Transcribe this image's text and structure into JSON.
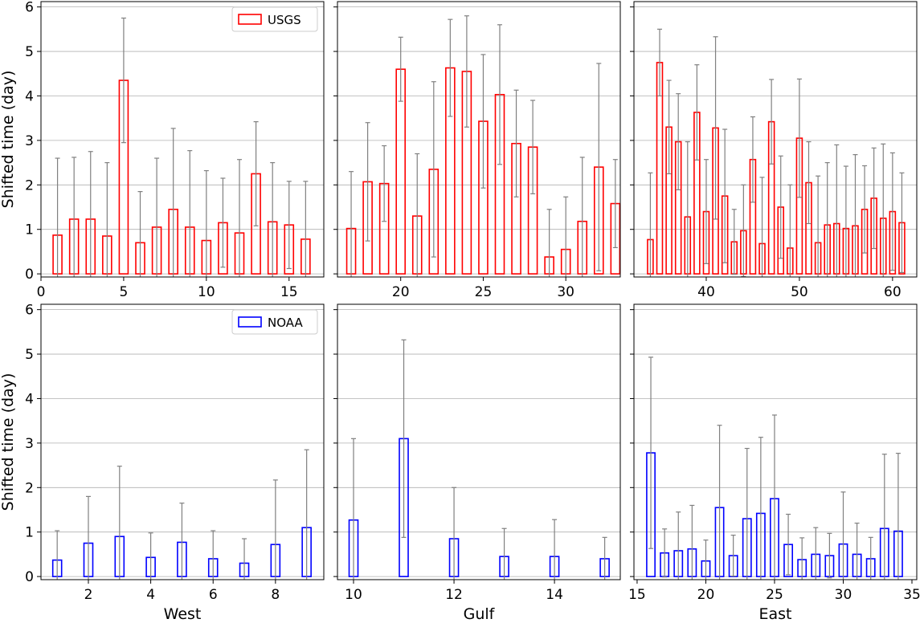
{
  "colors": {
    "usgs": "#ff0000",
    "noaa": "#0000ff",
    "errorbar": "#808080",
    "grid": "#b0b0b0"
  },
  "chart_data": [
    {
      "type": "bar",
      "panel": "top-left",
      "series": [
        {
          "name": "USGS",
          "x": [
            1,
            2,
            3,
            4,
            5,
            6,
            7,
            8,
            9,
            10,
            11,
            12,
            13,
            14,
            15,
            16
          ],
          "values": [
            0.87,
            1.23,
            1.23,
            0.85,
            4.35,
            0.7,
            1.05,
            1.45,
            1.05,
            0.75,
            1.15,
            0.92,
            2.25,
            1.17,
            1.1,
            0.78
          ],
          "yerr": [
            1.73,
            1.39,
            1.52,
            1.65,
            1.4,
            1.15,
            1.55,
            1.82,
            1.72,
            1.57,
            1.0,
            1.65,
            1.17,
            1.33,
            0.98,
            1.3
          ]
        }
      ],
      "xlabel": "",
      "ylabel": "Shifted time (day)",
      "xlim": [
        0,
        17.1
      ],
      "ylim": [
        -0.07,
        6.12
      ],
      "xticks": [
        0,
        5,
        10,
        15
      ],
      "yticks": [
        0,
        1,
        2,
        3,
        4,
        5,
        6
      ],
      "grid": "y",
      "legend": "top-right",
      "legend_label": "USGS"
    },
    {
      "type": "bar",
      "panel": "top-middle",
      "series": [
        {
          "name": "USGS",
          "x": [
            17,
            18,
            19,
            20,
            21,
            22,
            23,
            24,
            25,
            26,
            27,
            28,
            29,
            30,
            31,
            32,
            33
          ],
          "values": [
            1.02,
            2.07,
            2.03,
            4.6,
            1.3,
            2.35,
            4.63,
            4.55,
            3.43,
            4.03,
            2.93,
            2.85,
            0.38,
            0.55,
            1.18,
            2.4,
            1.58
          ],
          "yerr": [
            1.28,
            1.33,
            0.85,
            0.72,
            1.4,
            1.97,
            1.09,
            1.25,
            1.5,
            1.57,
            1.2,
            1.05,
            1.07,
            1.18,
            1.44,
            2.33,
            0.99
          ]
        }
      ],
      "xlabel": "",
      "ylabel": "",
      "xlim": [
        16.17,
        33.3
      ],
      "ylim": [
        -0.07,
        6.12
      ],
      "xticks": [
        20,
        25,
        30
      ],
      "yticks": [
        0,
        1,
        2,
        3,
        4,
        5,
        6
      ],
      "grid": "y"
    },
    {
      "type": "bar",
      "panel": "top-right",
      "series": [
        {
          "name": "USGS",
          "x": [
            34,
            35,
            36,
            37,
            38,
            39,
            40,
            41,
            42,
            43,
            44,
            45,
            46,
            47,
            48,
            49,
            50,
            51,
            52,
            53,
            54,
            55,
            56,
            57,
            58,
            59,
            60,
            61
          ],
          "values": [
            0.77,
            4.75,
            3.3,
            2.97,
            1.28,
            3.63,
            1.4,
            3.28,
            1.75,
            0.72,
            0.97,
            2.57,
            0.68,
            3.42,
            1.5,
            0.58,
            3.05,
            2.05,
            0.7,
            1.1,
            1.13,
            1.02,
            1.08,
            1.45,
            1.7,
            1.25,
            1.4,
            1.15
          ],
          "yerr": [
            1.5,
            0.75,
            1.05,
            1.08,
            1.69,
            1.07,
            1.17,
            2.05,
            1.5,
            0.73,
            1.03,
            0.96,
            1.49,
            0.95,
            1.15,
            1.42,
            1.33,
            0.92,
            1.5,
            1.4,
            1.77,
            1.4,
            1.6,
            0.98,
            1.13,
            1.67,
            1.32,
            1.12
          ]
        }
      ],
      "xlabel": "",
      "ylabel": "",
      "xlim": [
        32.24,
        62.6
      ],
      "ylim": [
        -0.07,
        6.12
      ],
      "xticks": [
        40,
        50,
        60
      ],
      "yticks": [
        0,
        1,
        2,
        3,
        4,
        5,
        6
      ],
      "grid": "y"
    },
    {
      "type": "bar",
      "panel": "bottom-left",
      "series": [
        {
          "name": "NOAA",
          "x": [
            1,
            2,
            3,
            4,
            5,
            6,
            7,
            8,
            9
          ],
          "values": [
            0.37,
            0.75,
            0.9,
            0.43,
            0.77,
            0.4,
            0.3,
            0.72,
            1.1
          ],
          "yerr": [
            0.66,
            1.05,
            1.58,
            0.55,
            0.88,
            0.63,
            0.55,
            1.45,
            1.75
          ]
        }
      ],
      "xlabel": "West",
      "ylabel": "Shifted time (day)",
      "xlim": [
        0.48,
        9.55
      ],
      "ylim": [
        -0.07,
        6.12
      ],
      "xticks": [
        2,
        4,
        6,
        8
      ],
      "yticks": [
        0,
        1,
        2,
        3,
        4,
        5,
        6
      ],
      "grid": "y",
      "legend": "top-right",
      "legend_label": "NOAA"
    },
    {
      "type": "bar",
      "panel": "bottom-middle",
      "series": [
        {
          "name": "NOAA",
          "x": [
            10,
            11,
            12,
            13,
            14,
            15
          ],
          "values": [
            1.27,
            3.1,
            0.85,
            0.45,
            0.45,
            0.4
          ],
          "yerr": [
            1.83,
            2.22,
            1.15,
            0.63,
            0.83,
            0.48
          ]
        }
      ],
      "xlabel": "Gulf",
      "ylabel": "",
      "xlim": [
        9.68,
        15.31
      ],
      "ylim": [
        -0.07,
        6.12
      ],
      "xticks": [
        10,
        12,
        14
      ],
      "yticks": [
        0,
        1,
        2,
        3,
        4,
        5,
        6
      ],
      "grid": "y"
    },
    {
      "type": "bar",
      "panel": "bottom-right",
      "series": [
        {
          "name": "NOAA",
          "x": [
            16,
            17,
            18,
            19,
            20,
            21,
            22,
            23,
            24,
            25,
            26,
            27,
            28,
            29,
            30,
            31,
            32,
            33,
            34
          ],
          "values": [
            2.78,
            0.53,
            0.58,
            0.62,
            0.35,
            1.55,
            0.47,
            1.3,
            1.42,
            1.75,
            0.72,
            0.38,
            0.5,
            0.47,
            0.73,
            0.5,
            0.4,
            1.08,
            1.02
          ],
          "yerr": [
            2.15,
            0.54,
            0.87,
            0.98,
            0.47,
            1.85,
            0.46,
            1.58,
            1.71,
            1.88,
            0.68,
            0.49,
            0.6,
            0.5,
            1.17,
            0.7,
            0.48,
            1.67,
            1.75
          ]
        }
      ],
      "xlabel": "East",
      "ylabel": "",
      "xlim": [
        14.77,
        35.35
      ],
      "ylim": [
        -0.07,
        6.12
      ],
      "xticks": [
        15,
        20,
        25,
        30,
        35
      ],
      "yticks": [
        0,
        1,
        2,
        3,
        4,
        5,
        6
      ],
      "grid": "y"
    }
  ]
}
